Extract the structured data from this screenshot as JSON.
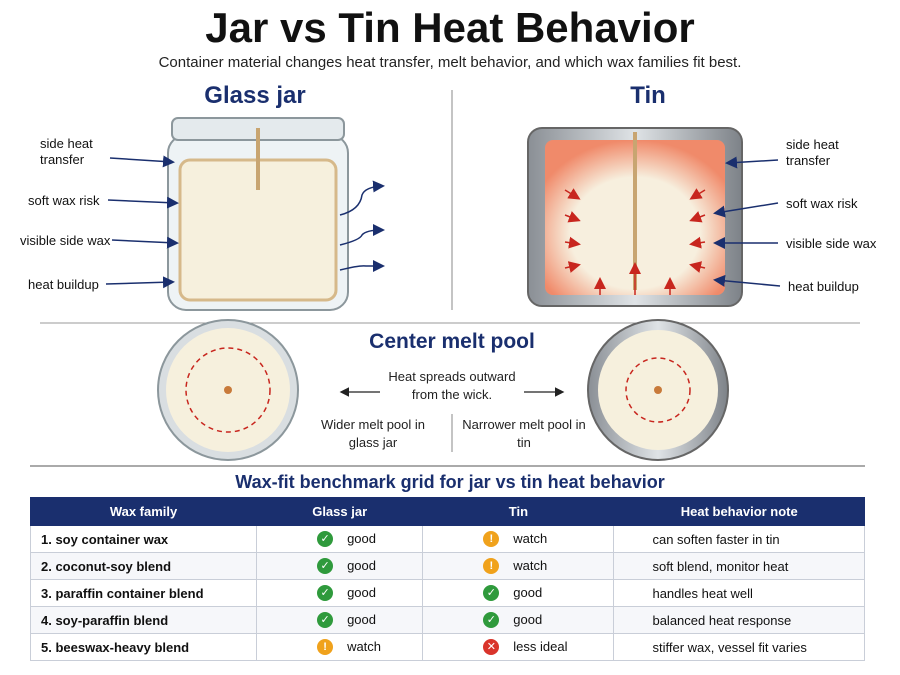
{
  "header": {
    "title": "Jar vs Tin Heat Behavior",
    "subtitle": "Container material changes heat transfer, melt behavior, and which wax families fit best."
  },
  "jar": {
    "title": "Glass jar",
    "labels": [
      "side heat transfer",
      "soft wax risk",
      "visible side wax",
      "heat buildup"
    ]
  },
  "tin": {
    "title": "Tin",
    "labels": [
      "side heat transfer",
      "soft wax risk",
      "visible side wax",
      "heat buildup"
    ]
  },
  "melt_pool": {
    "title": "Center melt pool",
    "note": "Heat spreads outward from the wick.",
    "jar_caption": "Wider melt pool in glass jar",
    "tin_caption": "Narrower melt pool in tin"
  },
  "table": {
    "title": "Wax-fit benchmark grid for jar vs tin heat behavior",
    "columns": [
      "Wax family",
      "Glass jar",
      "Tin",
      "Heat behavior note"
    ],
    "rows": [
      [
        "1. soy container wax",
        {
          "icon": "ok",
          "label": "good"
        },
        {
          "icon": "warn",
          "label": "watch"
        },
        "can soften faster in tin"
      ],
      [
        "2. coconut-soy blend",
        {
          "icon": "ok",
          "label": "good"
        },
        {
          "icon": "warn",
          "label": "watch"
        },
        "soft blend, monitor heat"
      ],
      [
        "3. paraffin container blend",
        {
          "icon": "ok",
          "label": "good"
        },
        {
          "icon": "ok",
          "label": "good"
        },
        "handles heat well"
      ],
      [
        "4. soy-paraffin blend",
        {
          "icon": "ok",
          "label": "good"
        },
        {
          "icon": "ok",
          "label": "good"
        },
        "balanced heat response"
      ],
      [
        "5. beeswax-heavy blend",
        {
          "icon": "warn",
          "label": "watch"
        },
        {
          "icon": "bad",
          "label": "less ideal"
        },
        "stiffer wax, vessel fit varies"
      ]
    ]
  }
}
